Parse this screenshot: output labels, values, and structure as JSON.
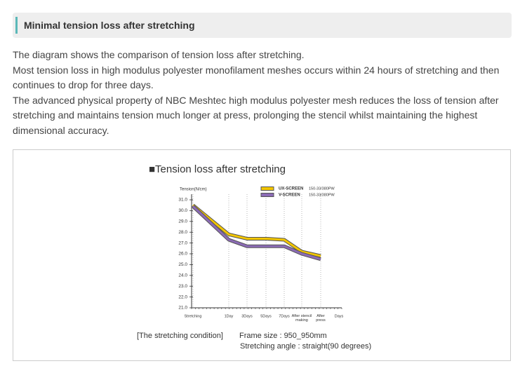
{
  "header": {
    "title": "Minimal tension loss after stretching"
  },
  "paragraphs": [
    "The diagram shows the comparison of tension loss after stretching.",
    "Most tension loss in high modulus polyester monofilament meshes occurs within 24 hours of stretching and then continues to drop for three days.",
    "The advanced physical property of NBC Meshtec high modulus polyester mesh reduces the loss of tension after stretching and maintains tension much longer at press, prolonging the stencil whilst maintaining the highest dimensional accuracy."
  ],
  "chart_data": {
    "type": "line",
    "title": "■Tension loss after stretching",
    "y_label": "Tension(N/cm)",
    "x_label": "Days",
    "categories": [
      "Stretching",
      "1Day",
      "3Days",
      "5Days",
      "7Days",
      "After stencil making",
      "After press"
    ],
    "series": [
      {
        "name": "UX-SCREEN",
        "mesh": "150-33/380PW",
        "color": "#f2c500",
        "values": [
          30.5,
          27.8,
          27.4,
          27.4,
          27.3,
          26.2,
          25.8
        ]
      },
      {
        "name": "V-SCREEN",
        "mesh": "150-33/380PW",
        "color": "#8b6bb5",
        "values": [
          30.4,
          27.3,
          26.7,
          26.7,
          26.7,
          26.0,
          25.5
        ]
      }
    ],
    "ylim": [
      21,
      31
    ],
    "yticks": [
      {
        "value": 21,
        "label": "21.0"
      },
      {
        "value": 22,
        "label": "22.0"
      },
      {
        "value": 23,
        "label": "23.0"
      },
      {
        "value": 24,
        "label": "24.0"
      },
      {
        "value": 25,
        "label": "25.0"
      },
      {
        "value": 26,
        "label": "26.0"
      },
      {
        "value": 27,
        "label": "27.0"
      },
      {
        "value": 28,
        "label": "28.0"
      },
      {
        "value": 29,
        "label": "29.0"
      },
      {
        "value": 30,
        "label": "30.0"
      },
      {
        "value": 31,
        "label": "31.0"
      }
    ],
    "grid": true
  },
  "caption": {
    "condition": "[The stretching condition]",
    "frame": "Frame size : 950_950mm",
    "angle": "Stretching angle : straight(90 degrees)"
  }
}
